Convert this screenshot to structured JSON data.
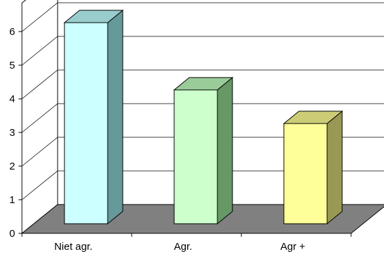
{
  "chart_data": {
    "type": "bar",
    "style": "3d-column",
    "categories": [
      "Niet agr.",
      "Agr.",
      "Agr +"
    ],
    "values": [
      6,
      4,
      3
    ],
    "ylim": [
      0,
      6
    ],
    "yticks": [
      "0",
      "1",
      "2",
      "3",
      "4",
      "5",
      "6"
    ],
    "grid": true,
    "legend": "none",
    "colors": {
      "floor": "#808080",
      "bars": [
        {
          "front": "#ccffff",
          "top": "#99cccc",
          "side": "#669999"
        },
        {
          "front": "#ccffcc",
          "top": "#99cc99",
          "side": "#669966"
        },
        {
          "front": "#ffff99",
          "top": "#cccc77",
          "side": "#999955"
        }
      ]
    }
  }
}
